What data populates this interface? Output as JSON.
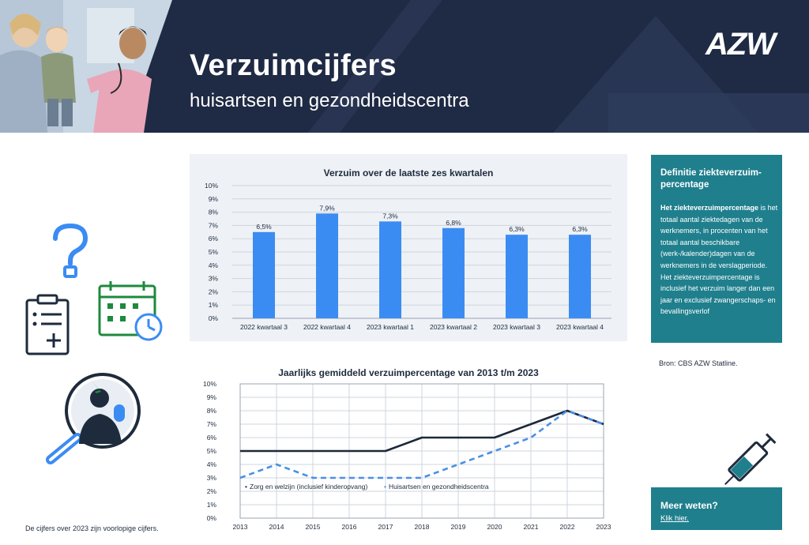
{
  "header": {
    "title": "Verzuimcijfers",
    "subtitle": "huisartsen en gezondheidscentra",
    "logo": "AZW"
  },
  "colors": {
    "navy": "#1f2a44",
    "teal": "#1f7f8d",
    "bar_blue": "#3b8cf2",
    "line_dark": "#1e2838",
    "line_blue": "#4a8fe6",
    "icon_blue": "#3b8cf2",
    "icon_green": "#1d8a3c"
  },
  "icons": [
    "question-mark-icon",
    "clipboard-icon",
    "calendar-clock-icon",
    "magnifier-person-icon",
    "syringe-icon",
    "doctor-photo"
  ],
  "chart_data": [
    {
      "type": "bar",
      "title": "Verzuim over de laatste zes kwartalen",
      "categories": [
        "2022 kwartaal 3",
        "2022 kwartaal 4",
        "2023 kwartaal 1",
        "2023 kwartaal 2",
        "2023 kwartaal 3",
        "2023 kwartaal 4"
      ],
      "values": [
        6.5,
        7.9,
        7.3,
        6.8,
        6.3,
        6.3
      ],
      "data_labels": [
        "6,5%",
        "7,9%",
        "7,3%",
        "6,8%",
        "6,3%",
        "6,3%"
      ],
      "yticks": [
        "0%",
        "1%",
        "2%",
        "3%",
        "4%",
        "5%",
        "6%",
        "7%",
        "8%",
        "9%",
        "10%"
      ],
      "ylim": [
        0,
        10
      ],
      "grid": true
    },
    {
      "type": "line",
      "title": "Jaarlijks gemiddeld verzuimpercentage van 2013 t/m 2023",
      "x": [
        "2013",
        "2014",
        "2015",
        "2016",
        "2017",
        "2018",
        "2019",
        "2020",
        "2021",
        "2022",
        "2023"
      ],
      "series": [
        {
          "name": "Zorg en welzijn (inclusief kinderopvang)",
          "values": [
            5,
            5,
            5,
            5,
            5,
            6,
            6,
            6,
            7,
            8,
            7
          ]
        },
        {
          "name": "Huisartsen en gezondheidscentra",
          "values": [
            3,
            4,
            3,
            3,
            3,
            3,
            4,
            5,
            6,
            8,
            7
          ]
        }
      ],
      "yticks": [
        "0%",
        "1%",
        "2%",
        "3%",
        "4%",
        "5%",
        "6%",
        "7%",
        "8%",
        "9%",
        "10%"
      ],
      "ylim": [
        0,
        10
      ],
      "grid": true,
      "legend_position": "inside-bottom-left"
    }
  ],
  "definition": {
    "title": "Definitie ziekteverzuim-percentage",
    "body_bold": "Het ziekteverzuimpercentage",
    "body_rest": " is het totaal aantal ziektedagen van de werknemers, in procenten van het totaal aantal beschikbare (werk-/kalender)dagen van de werknemers in de verslagperiode. Het ziekteverzuimpercentage is inclusief het verzuim langer dan een jaar en exclusief zwangerschaps- en bevallingsverlof"
  },
  "source": "Bron: CBS AZW Statline.",
  "more": {
    "title": "Meer weten?",
    "link": "Klik hier."
  },
  "footnote": "De cijfers over 2023 zijn voorlopige cijfers."
}
